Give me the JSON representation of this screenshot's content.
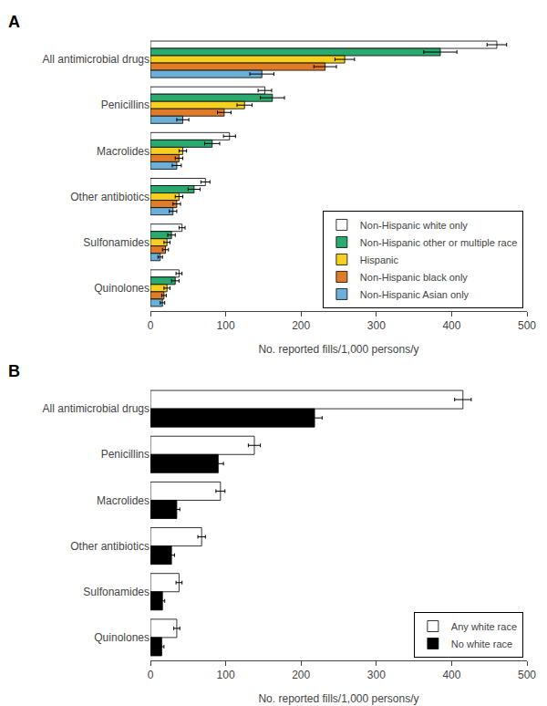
{
  "chart_data": [
    {
      "type": "bar",
      "orientation": "horizontal",
      "title": "A",
      "categories": [
        "All antimicrobial drugs",
        "Penicillins",
        "Macrolides",
        "Other antibiotics",
        "Sulfonamides",
        "Quinolones"
      ],
      "series": [
        {
          "name": "Non-Hispanic white only",
          "color": "#ffffff",
          "values": [
            460,
            152,
            105,
            73,
            42,
            38
          ],
          "errors": [
            13,
            9,
            8,
            6,
            4,
            4
          ]
        },
        {
          "name": "Non-Hispanic other or multiple race",
          "color": "#2aaa6e",
          "values": [
            385,
            162,
            82,
            58,
            28,
            33
          ],
          "errors": [
            22,
            16,
            10,
            8,
            5,
            5
          ]
        },
        {
          "name": "Hispanic",
          "color": "#f5d020",
          "values": [
            258,
            125,
            43,
            38,
            22,
            22
          ],
          "errors": [
            13,
            10,
            5,
            5,
            4,
            4
          ]
        },
        {
          "name": "Non-Hispanic black only",
          "color": "#e07b2a",
          "values": [
            232,
            98,
            38,
            35,
            20,
            18
          ],
          "errors": [
            15,
            9,
            5,
            5,
            4,
            3
          ]
        },
        {
          "name": "Non-Hispanic Asian only",
          "color": "#6ab0d8",
          "values": [
            148,
            43,
            35,
            30,
            13,
            16
          ],
          "errors": [
            16,
            8,
            6,
            5,
            3,
            3
          ]
        }
      ],
      "xlim": [
        0,
        500
      ],
      "xticks": [
        0,
        100,
        200,
        300,
        400,
        500
      ],
      "xlabel": "No. reported fills/1,000 persons/y",
      "grid": false,
      "legend": "lower right"
    },
    {
      "type": "bar",
      "orientation": "horizontal",
      "title": "B",
      "categories": [
        "All antimicrobial drugs",
        "Penicillins",
        "Macrolides",
        "Other antibiotics",
        "Sulfonamides",
        "Quinolones"
      ],
      "series": [
        {
          "name": "Any white race",
          "color": "#ffffff",
          "values": [
            415,
            138,
            93,
            68,
            38,
            35
          ],
          "errors": [
            11,
            8,
            6,
            5,
            4,
            4
          ]
        },
        {
          "name": "No white race",
          "color": "#000000",
          "values": [
            218,
            90,
            35,
            28,
            16,
            15
          ],
          "errors": [
            10,
            7,
            4,
            4,
            3,
            3
          ]
        }
      ],
      "xlim": [
        0,
        500
      ],
      "xticks": [
        0,
        100,
        200,
        300,
        400,
        500
      ],
      "xlabel": "No. reported fills/1,000 persons/y",
      "grid": false,
      "legend": "lower right"
    }
  ]
}
